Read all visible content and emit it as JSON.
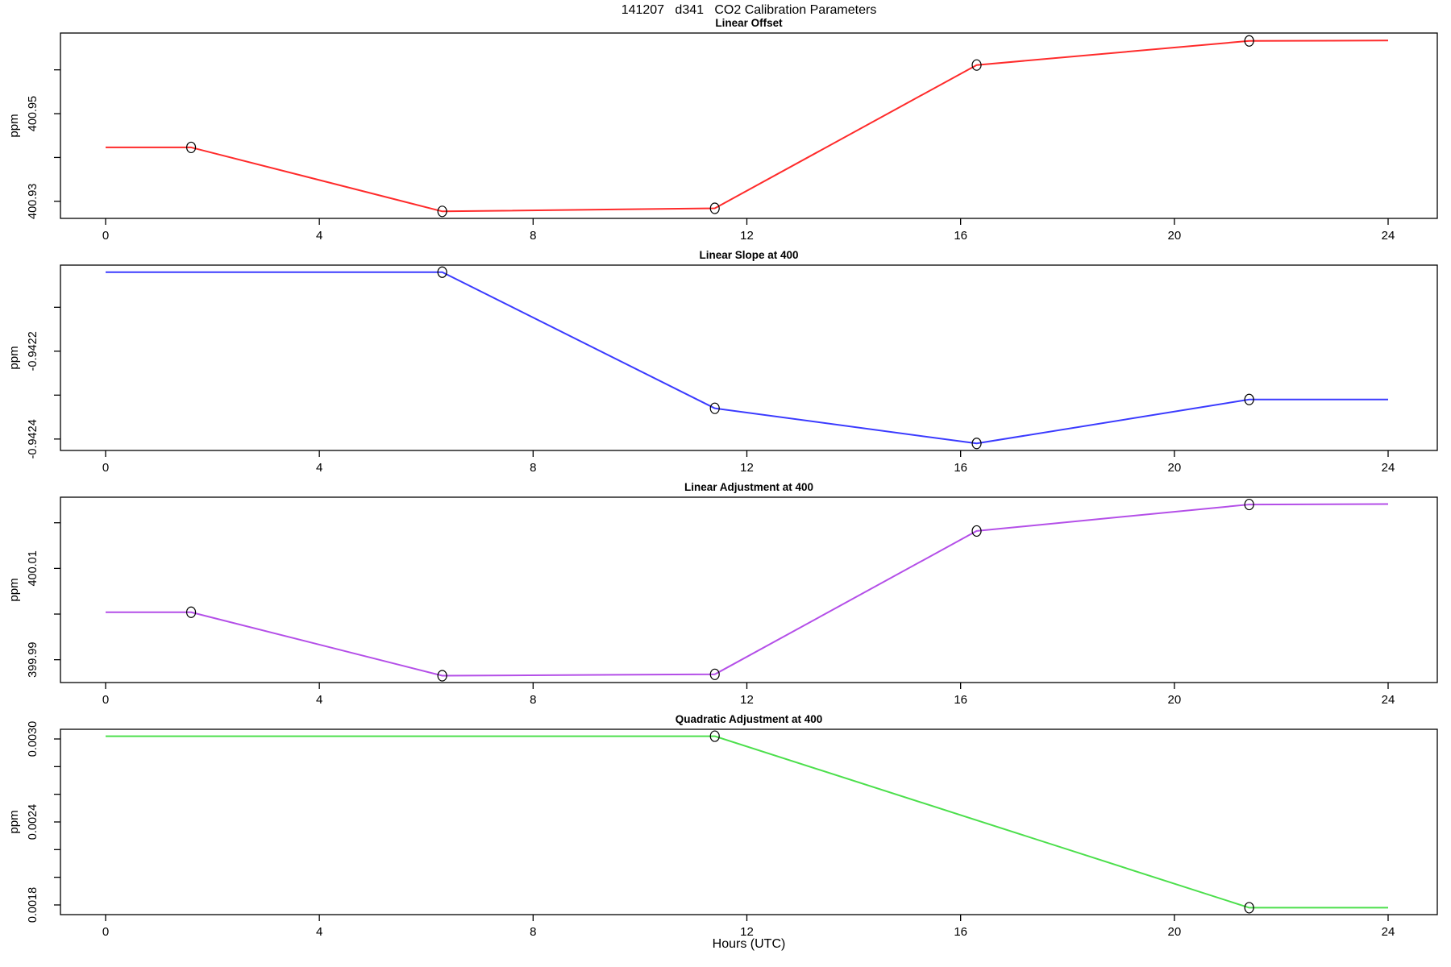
{
  "page_title": "141207   d341   CO2 Calibration Parameters",
  "xlabel": "Hours (UTC)",
  "axis_color": "#000000",
  "background_color": "#ffffff",
  "chart_data": [
    {
      "type": "line",
      "title": "Linear Offset",
      "ylabel": "ppm",
      "color": "#ff2b2b",
      "xlim": [
        0,
        24
      ],
      "xticks": [
        0,
        4,
        8,
        12,
        16,
        20,
        24
      ],
      "ylim": [
        400.9261,
        400.9684
      ],
      "yticks": [
        400.93,
        400.94,
        400.95,
        400.96
      ],
      "ytick_labels": [
        "400.93",
        "",
        "400.95",
        ""
      ],
      "x": [
        0,
        1.6,
        6.3,
        11.4,
        16.3,
        21.4,
        24
      ],
      "y": [
        400.9423,
        400.9423,
        400.9277,
        400.9284,
        400.9611,
        400.9666,
        400.9667
      ],
      "markers": [
        [
          1.6,
          400.9423
        ],
        [
          6.3,
          400.9277
        ],
        [
          11.4,
          400.9284
        ],
        [
          16.3,
          400.9611
        ],
        [
          21.4,
          400.9666
        ]
      ]
    },
    {
      "type": "line",
      "title": "Linear Slope at 400",
      "ylabel": "ppm",
      "color": "#3b3bff",
      "xlim": [
        0,
        24
      ],
      "xticks": [
        0,
        4,
        8,
        12,
        16,
        20,
        24
      ],
      "ylim": [
        -0.942426,
        -0.942004
      ],
      "yticks": [
        -0.9424,
        -0.9423,
        -0.9422,
        -0.9421
      ],
      "ytick_labels": [
        "-0.9424",
        "",
        "-0.9422",
        ""
      ],
      "x": [
        0,
        6.3,
        11.4,
        16.3,
        21.4,
        24
      ],
      "y": [
        -0.94202,
        -0.94202,
        -0.94233,
        -0.94241,
        -0.94231,
        -0.94231
      ],
      "markers": [
        [
          6.3,
          -0.94202
        ],
        [
          11.4,
          -0.94233
        ],
        [
          16.3,
          -0.94241
        ],
        [
          21.4,
          -0.94231
        ]
      ]
    },
    {
      "type": "line",
      "title": "Linear Adjustment at 400",
      "ylabel": "ppm",
      "color": "#b44fe8",
      "xlim": [
        0,
        24
      ],
      "xticks": [
        0,
        4,
        8,
        12,
        16,
        20,
        24
      ],
      "ylim": [
        399.985,
        400.0256
      ],
      "yticks": [
        399.99,
        400.0,
        400.01,
        400.02
      ],
      "ytick_labels": [
        "399.99",
        "",
        "400.01",
        ""
      ],
      "x": [
        0,
        1.6,
        6.3,
        11.4,
        16.3,
        21.4,
        24
      ],
      "y": [
        400.0004,
        400.0004,
        399.9865,
        399.9868,
        400.0182,
        400.024,
        400.0241
      ],
      "markers": [
        [
          1.6,
          400.0004
        ],
        [
          6.3,
          399.9865
        ],
        [
          11.4,
          399.9868
        ],
        [
          16.3,
          400.0182
        ],
        [
          21.4,
          400.024
        ]
      ]
    },
    {
      "type": "line",
      "title": "Quadratic Adjustment at 400",
      "ylabel": "ppm",
      "color": "#4cdf4c",
      "xlim": [
        0,
        24
      ],
      "xticks": [
        0,
        4,
        8,
        12,
        16,
        20,
        24
      ],
      "ylim": [
        0.00173,
        0.00307
      ],
      "yticks": [
        0.0018,
        0.002,
        0.0022,
        0.0024,
        0.0026,
        0.0028,
        0.003
      ],
      "ytick_labels": [
        "0.0018",
        "",
        "",
        "0.0024",
        "",
        "",
        "0.0030"
      ],
      "x": [
        0,
        11.4,
        21.4,
        24
      ],
      "y": [
        0.00302,
        0.00302,
        0.00178,
        0.00178
      ],
      "markers": [
        [
          11.4,
          0.00302
        ],
        [
          21.4,
          0.00178
        ]
      ]
    }
  ]
}
